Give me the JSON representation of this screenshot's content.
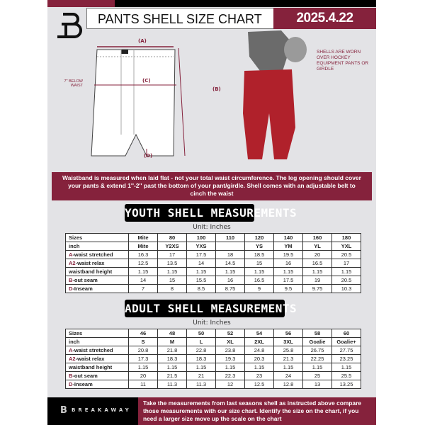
{
  "header": {
    "title": "PANTS SHELL SIZE CHART",
    "date": "2025.4.22",
    "logo": "B"
  },
  "diagram": {
    "label_a": "(A)",
    "label_b": "(B)",
    "label_c": "(C)",
    "label_d": "(D)",
    "below_waist": "7'' BELOW WAIST",
    "note": "SHELLS ARE WORN OVER HOCKEY EQUIPMENT PANTS OR GIRDLE"
  },
  "banner": {
    "text": "Waistband is measured when laid flat - not your total waist circumference. The leg opening should cover your pants & extend 1''-2'' past the bottom of your pant/girdle. Shell comes with an adjustable belt to cinch the waist"
  },
  "youth": {
    "title": "YOUTH SHELL MEASUREMENTS",
    "unit": "Unit: Inches",
    "rows": [
      [
        "Sizes",
        "Mite",
        "80",
        "100",
        "110",
        "120",
        "140",
        "160",
        "180"
      ],
      [
        "inch",
        "Mite",
        "Y2XS",
        "YXS",
        "",
        "YS",
        "YM",
        "YL",
        "YXL"
      ],
      [
        "A|-waist stretched",
        "16.3",
        "17",
        "17.5",
        "18",
        "18.5",
        "19.5",
        "20",
        "20.5"
      ],
      [
        "A2|-waist relax",
        "12.5",
        "13.5",
        "14",
        "14.5",
        "15",
        "16",
        "16.5",
        "17"
      ],
      [
        "|waistband height",
        "1.15",
        "1.15",
        "1.15",
        "1.15",
        "1.15",
        "1.15",
        "1.15",
        "1.15"
      ],
      [
        "B|-out seam",
        "14",
        "15",
        "15.5",
        "16",
        "16.5",
        "17.5",
        "19",
        "20.5"
      ],
      [
        "D|-Inseam",
        "7",
        "8",
        "8.5",
        "8.75",
        "9",
        "9.5",
        "9.75",
        "10.3"
      ]
    ]
  },
  "adult": {
    "title": "ADULT SHELL MEASUREMENTS",
    "unit": "Unit: Inches",
    "rows": [
      [
        "Sizes",
        "46",
        "48",
        "50",
        "52",
        "54",
        "56",
        "58",
        "60"
      ],
      [
        "inch",
        "S",
        "M",
        "L",
        "XL",
        "2XL",
        "3XL",
        "Goalie",
        "Goalie+"
      ],
      [
        "A|-waist stretched",
        "20.8",
        "21.8",
        "22.8",
        "23.8",
        "24.8",
        "25.8",
        "26.75",
        "27.75"
      ],
      [
        "A2|-waist relax",
        "17.3",
        "18.3",
        "18.3",
        "19.3",
        "20.3",
        "21.3",
        "22.25",
        "23.25"
      ],
      [
        "|waistband height",
        "1.15",
        "1.15",
        "1.15",
        "1.15",
        "1.15",
        "1.15",
        "1.15",
        "1.15"
      ],
      [
        "B|-out seam",
        "20",
        "21.5",
        "21",
        "22.3",
        "23",
        "24",
        "25",
        "25.5"
      ],
      [
        "D|-Inseam",
        "11",
        "11.3",
        "11.3",
        "12",
        "12.5",
        "12.8",
        "13",
        "13.25"
      ]
    ]
  },
  "footer": {
    "brand": "BREAKAWAY",
    "text": "Take the measurements from last seasons shell as instructed above compare those measurements  with our size chart. Identify the size on the chart, if you need a larger size move up the scale on the chart"
  },
  "colors": {
    "maroon": "#85223c",
    "black": "#000000",
    "background": "#e3e3e6"
  }
}
